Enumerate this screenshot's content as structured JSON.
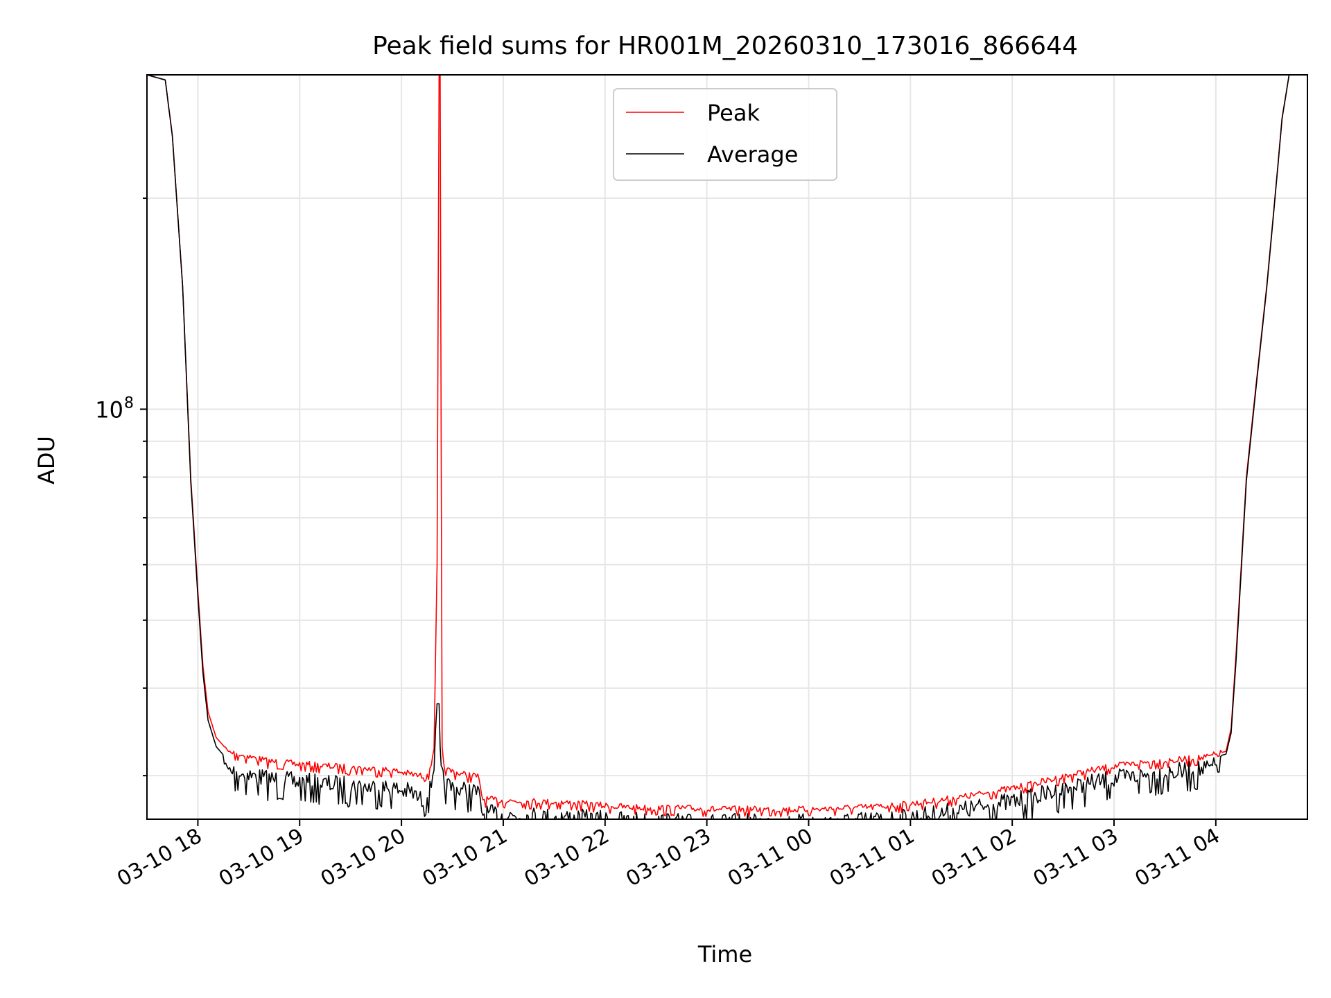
{
  "chart_data": {
    "type": "line",
    "title": "Peak field sums for HR001M_20260310_173016_866644",
    "xlabel": "Time",
    "ylabel": "ADU",
    "yscale": "log",
    "ylim": [
      26000000,
      300000000
    ],
    "xlim": [
      17.5,
      28.9
    ],
    "grid": true,
    "legend_position": "top-center",
    "y_major_tick": {
      "value": 100000000,
      "label_base": "10",
      "label_exp": "8"
    },
    "y_minor_ticks": [
      30000000,
      40000000,
      50000000,
      60000000,
      70000000,
      80000000,
      90000000,
      200000000
    ],
    "x_ticks": [
      {
        "value": 18,
        "label": "03-10 18"
      },
      {
        "value": 19,
        "label": "03-10 19"
      },
      {
        "value": 20,
        "label": "03-10 20"
      },
      {
        "value": 21,
        "label": "03-10 21"
      },
      {
        "value": 22,
        "label": "03-10 22"
      },
      {
        "value": 23,
        "label": "03-10 23"
      },
      {
        "value": 24,
        "label": "03-11 00"
      },
      {
        "value": 25,
        "label": "03-11 01"
      },
      {
        "value": 26,
        "label": "03-11 02"
      },
      {
        "value": 27,
        "label": "03-11 03"
      },
      {
        "value": 28,
        "label": "03-11 04"
      }
    ],
    "series": [
      {
        "name": "Peak",
        "color": "#ff0000",
        "x": [
          17.5,
          17.68,
          17.75,
          17.85,
          17.93,
          18.0,
          18.05,
          18.1,
          18.18,
          18.3,
          18.5,
          18.7,
          19.0,
          19.3,
          19.6,
          19.9,
          20.1,
          20.2,
          20.28,
          20.32,
          20.35,
          20.37,
          20.38,
          20.39,
          20.4,
          20.41,
          20.42,
          20.45,
          20.5,
          20.6,
          20.75,
          20.8,
          21.0,
          21.3,
          21.6,
          21.9,
          22.2,
          22.5,
          22.8,
          23.1,
          23.4,
          23.7,
          24.0,
          24.3,
          24.6,
          24.9,
          25.2,
          25.5,
          25.8,
          26.1,
          26.4,
          26.7,
          27.0,
          27.3,
          27.6,
          27.9,
          28.1,
          28.15,
          28.2,
          28.25,
          28.3,
          28.4,
          28.5,
          28.6,
          28.65,
          28.72,
          28.8
        ],
        "y": [
          300000000,
          295000000,
          245000000,
          150000000,
          80000000,
          55000000,
          43000000,
          37000000,
          34000000,
          32500000,
          32000000,
          31500000,
          31200000,
          31000000,
          30800000,
          30600000,
          30200000,
          30000000,
          30500000,
          33000000,
          60000000,
          300000000,
          300000000,
          90000000,
          33000000,
          31500000,
          31000000,
          30600000,
          30500000,
          30200000,
          30000000,
          27800000,
          27700000,
          27600000,
          27500000,
          27300000,
          27100000,
          27000000,
          27000000,
          26900000,
          26900000,
          26900000,
          26900000,
          27000000,
          27100000,
          27300000,
          27600000,
          28000000,
          28500000,
          29000000,
          29700000,
          30400000,
          31000000,
          31400000,
          31600000,
          31900000,
          32500000,
          35000000,
          45000000,
          60000000,
          80000000,
          110000000,
          150000000,
          215000000,
          260000000,
          300000000,
          300000000
        ]
      },
      {
        "name": "Average",
        "color": "#000000",
        "x": [
          17.5,
          17.68,
          17.75,
          17.85,
          17.93,
          18.0,
          18.05,
          18.1,
          18.18,
          18.3,
          18.5,
          18.7,
          19.0,
          19.3,
          19.6,
          19.9,
          20.1,
          20.2,
          20.28,
          20.32,
          20.35,
          20.37,
          20.38,
          20.39,
          20.4,
          20.41,
          20.42,
          20.45,
          20.5,
          20.6,
          20.75,
          20.8,
          21.0,
          21.3,
          21.6,
          21.9,
          22.2,
          22.5,
          22.8,
          23.1,
          23.4,
          23.7,
          24.0,
          24.3,
          24.6,
          24.9,
          25.2,
          25.5,
          25.8,
          26.1,
          26.4,
          26.7,
          27.0,
          27.3,
          27.6,
          27.9,
          28.1,
          28.15,
          28.2,
          28.25,
          28.3,
          28.4,
          28.5,
          28.6,
          28.65,
          28.72,
          28.8
        ],
        "y": [
          300000000,
          295000000,
          245000000,
          150000000,
          79000000,
          54000000,
          42000000,
          36000000,
          33000000,
          31500000,
          31000000,
          30600000,
          30300000,
          30100000,
          29900000,
          29700000,
          29300000,
          28500000,
          29500000,
          32000000,
          38000000,
          38000000,
          33000000,
          31000000,
          30800000,
          30500000,
          30300000,
          30000000,
          29800000,
          29500000,
          29300000,
          27300000,
          27200000,
          27100000,
          27000000,
          26800000,
          26700000,
          26600000,
          26500000,
          26500000,
          26500000,
          26500000,
          26500000,
          26600000,
          26700000,
          26900000,
          27200000,
          27600000,
          28100000,
          28600000,
          29300000,
          30000000,
          30600000,
          31000000,
          31300000,
          31600000,
          32200000,
          34500000,
          44000000,
          59000000,
          79000000,
          109000000,
          149000000,
          214000000,
          259000000,
          300000000,
          300000000
        ]
      }
    ]
  }
}
